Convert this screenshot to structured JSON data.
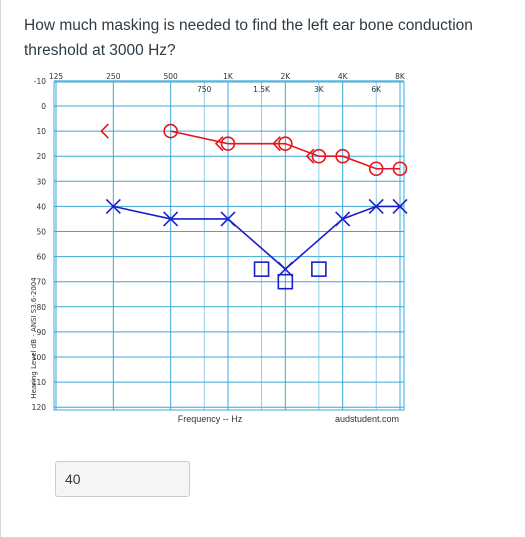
{
  "question": {
    "text": "How much masking is needed to find the left ear bone conduction threshold at 3000 Hz?"
  },
  "answer": {
    "value": "40"
  },
  "chart_data": {
    "type": "line",
    "title": "",
    "xlabel": "Frequency -- Hz",
    "ylabel": "Hearing Level dB - ANSI S3.6-2004",
    "credit": "audstudent.com",
    "x_ticks_top": [
      "125",
      "250",
      "500",
      "1K",
      "2K",
      "4K",
      "8K"
    ],
    "x_ticks_mid": [
      "750",
      "1.5K",
      "3K",
      "6K"
    ],
    "y_ticks": [
      -10,
      0,
      10,
      20,
      30,
      40,
      50,
      60,
      70,
      80,
      90,
      100,
      110,
      120
    ],
    "ylim": [
      -10,
      120
    ],
    "grid": true,
    "colors": {
      "right_ear": "#e8141d",
      "left_ear": "#1a1fcc",
      "grid": "#3ea8d8"
    },
    "series": [
      {
        "id": "right_air",
        "symbol": "circle",
        "color": "#e8141d",
        "points": [
          [
            500,
            10
          ],
          [
            1000,
            15
          ],
          [
            2000,
            15
          ],
          [
            3000,
            20
          ],
          [
            4000,
            20
          ],
          [
            6000,
            25
          ],
          [
            8000,
            25
          ]
        ]
      },
      {
        "id": "right_bone",
        "symbol": "left-bracket",
        "color": "#e8141d",
        "points": [
          [
            250,
            10
          ],
          [
            1000,
            15
          ],
          [
            2000,
            15
          ],
          [
            3000,
            20
          ]
        ]
      },
      {
        "id": "left_air",
        "symbol": "x",
        "color": "#1a1fcc",
        "points": [
          [
            250,
            40
          ],
          [
            500,
            45
          ],
          [
            1000,
            45
          ],
          [
            2000,
            65
          ],
          [
            4000,
            45
          ],
          [
            6000,
            40
          ],
          [
            8000,
            40
          ]
        ]
      },
      {
        "id": "left_masked_bone",
        "symbol": "square",
        "color": "#1a1fcc",
        "points": [
          [
            1500,
            65
          ],
          [
            2000,
            70
          ],
          [
            3000,
            65
          ]
        ]
      }
    ]
  }
}
